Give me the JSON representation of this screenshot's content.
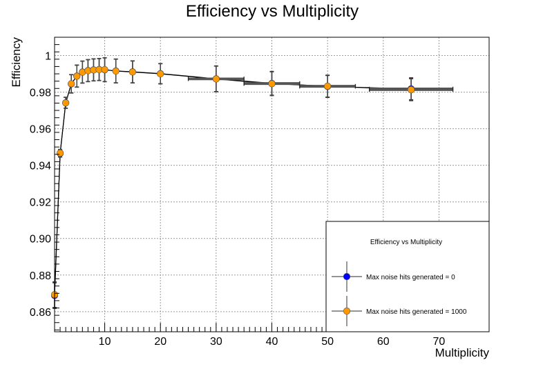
{
  "chart_data": {
    "type": "scatter",
    "title": "Efficiency vs Multiplicity",
    "xlabel": "Multiplicity",
    "ylabel": "Efficiency",
    "xlim": [
      1,
      79
    ],
    "ylim": [
      0.849,
      1.01
    ],
    "xticks": [
      10,
      20,
      30,
      40,
      50,
      60,
      70
    ],
    "yticks": [
      0.86,
      0.88,
      0.9,
      0.92,
      0.94,
      0.96,
      0.98,
      1
    ],
    "ytick_labels": [
      "0.86",
      "0.88",
      "0.90",
      "0.92",
      "0.94",
      "0.96",
      "0.98",
      "1"
    ],
    "grid": true,
    "legend": {
      "placement": "bottom-right",
      "title": "Efficiency vs Multiplicity"
    },
    "series": [
      {
        "name": "Max noise hits generated = 0",
        "color": "#0000ff",
        "x": [
          1,
          2,
          3,
          4,
          5,
          6,
          7,
          8,
          9,
          10,
          12,
          15,
          20,
          30,
          40,
          50,
          65
        ],
        "y": [
          0.8688,
          0.9465,
          0.9742,
          0.9845,
          0.9888,
          0.991,
          0.9918,
          0.9922,
          0.9924,
          0.9922,
          0.9916,
          0.9911,
          0.9901,
          0.9873,
          0.9848,
          0.9831,
          0.9818
        ],
        "xerr": [
          0,
          0,
          0,
          0,
          0,
          0,
          0,
          0,
          0,
          0,
          0,
          0,
          0,
          5,
          5,
          5,
          7.5
        ],
        "yerr": [
          0.007,
          0.002,
          0.003,
          0.005,
          0.006,
          0.006,
          0.006,
          0.006,
          0.006,
          0.0065,
          0.0065,
          0.006,
          0.0055,
          0.007,
          0.0065,
          0.006,
          0.006
        ]
      },
      {
        "name": "Max noise hits generated = 1000",
        "color": "#ff9900",
        "x": [
          1,
          2,
          3,
          4,
          5,
          6,
          7,
          8,
          9,
          10,
          12,
          15,
          20,
          30,
          40,
          50,
          65
        ],
        "y": [
          0.8693,
          0.9467,
          0.9741,
          0.9846,
          0.9887,
          0.9909,
          0.9917,
          0.9921,
          0.9923,
          0.9923,
          0.9915,
          0.991,
          0.99,
          0.9872,
          0.9846,
          0.9833,
          0.9813
        ],
        "xerr": [
          0,
          0,
          0,
          0,
          0,
          0,
          0,
          0,
          0,
          0,
          0,
          0,
          0,
          5,
          5,
          5,
          7.5
        ],
        "yerr": [
          0.007,
          0.002,
          0.003,
          0.005,
          0.006,
          0.006,
          0.006,
          0.006,
          0.006,
          0.0065,
          0.0065,
          0.006,
          0.0055,
          0.007,
          0.0065,
          0.006,
          0.006
        ]
      }
    ]
  }
}
